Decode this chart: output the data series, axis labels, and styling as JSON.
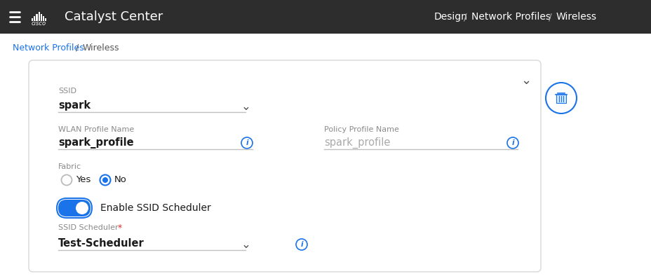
{
  "bg_color": "#f0f0f0",
  "header_bg": "#2d2d2d",
  "header_text_color": "#ffffff",
  "header_title": "Catalyst Center",
  "card_bg": "#ffffff",
  "card_border": "#d8d8d8",
  "label_color": "#8a8a8a",
  "value_color": "#1a1a1a",
  "blue_color": "#1a73e8",
  "red_color": "#d93025",
  "toggle_bg": "#1a73e8",
  "toggle_knob": "#ffffff",
  "radio_border_empty": "#aaaaaa",
  "line_color": "#c0c0c0",
  "chevron_color": "#555555",
  "ssid_label": "SSID",
  "ssid_value": "spark",
  "wlan_label": "WLAN Profile Name",
  "wlan_value": "spark_profile",
  "policy_label": "Policy Profile Name",
  "policy_value": "spark_profile",
  "fabric_label": "Fabric",
  "enable_ssid_label": "Enable SSID Scheduler",
  "scheduler_value": "Test-Scheduler",
  "scheduler_asterisk_color": "#d93025",
  "breadcrumb_blue": "#1a73e8",
  "breadcrumb_gray": "#555555"
}
